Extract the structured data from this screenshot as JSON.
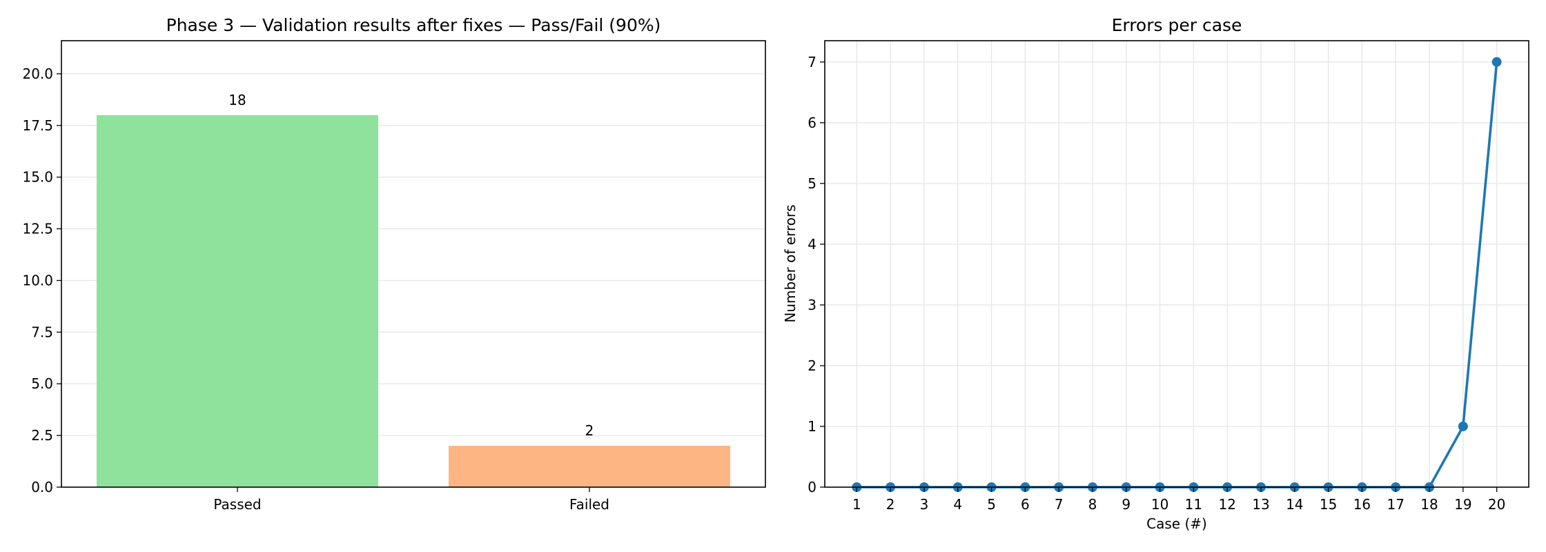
{
  "chart_data": [
    {
      "type": "bar",
      "title": "Phase 3 — Validation results after fixes — Pass/Fail (90%)",
      "xlabel": "",
      "ylabel": "",
      "categories": [
        "Passed",
        "Failed"
      ],
      "values": [
        18,
        2
      ],
      "data_labels": [
        "18",
        "2"
      ],
      "colors": [
        "#8ee29c",
        "#fdb683"
      ],
      "ylim": [
        0,
        21.6
      ],
      "yticks": [
        "0.0",
        "2.5",
        "5.0",
        "7.5",
        "10.0",
        "12.5",
        "15.0",
        "17.5",
        "20.0"
      ],
      "grid": "y"
    },
    {
      "type": "line",
      "title": "Errors per case",
      "xlabel": "Case (#)",
      "ylabel": "Number of errors",
      "x": [
        1,
        2,
        3,
        4,
        5,
        6,
        7,
        8,
        9,
        10,
        11,
        12,
        13,
        14,
        15,
        16,
        17,
        18,
        19,
        20
      ],
      "series": [
        {
          "values": [
            0,
            0,
            0,
            0,
            0,
            0,
            0,
            0,
            0,
            0,
            0,
            0,
            0,
            0,
            0,
            0,
            0,
            0,
            1,
            7
          ],
          "color": "#1f77b4",
          "marker": "circle"
        }
      ],
      "xticks": [
        "1",
        "2",
        "3",
        "4",
        "5",
        "6",
        "7",
        "8",
        "9",
        "10",
        "11",
        "12",
        "13",
        "14",
        "15",
        "16",
        "17",
        "18",
        "19",
        "20"
      ],
      "ylim": [
        0,
        7.35
      ],
      "yticks": [
        "0",
        "1",
        "2",
        "3",
        "4",
        "5",
        "6",
        "7"
      ],
      "grid": "both"
    }
  ]
}
